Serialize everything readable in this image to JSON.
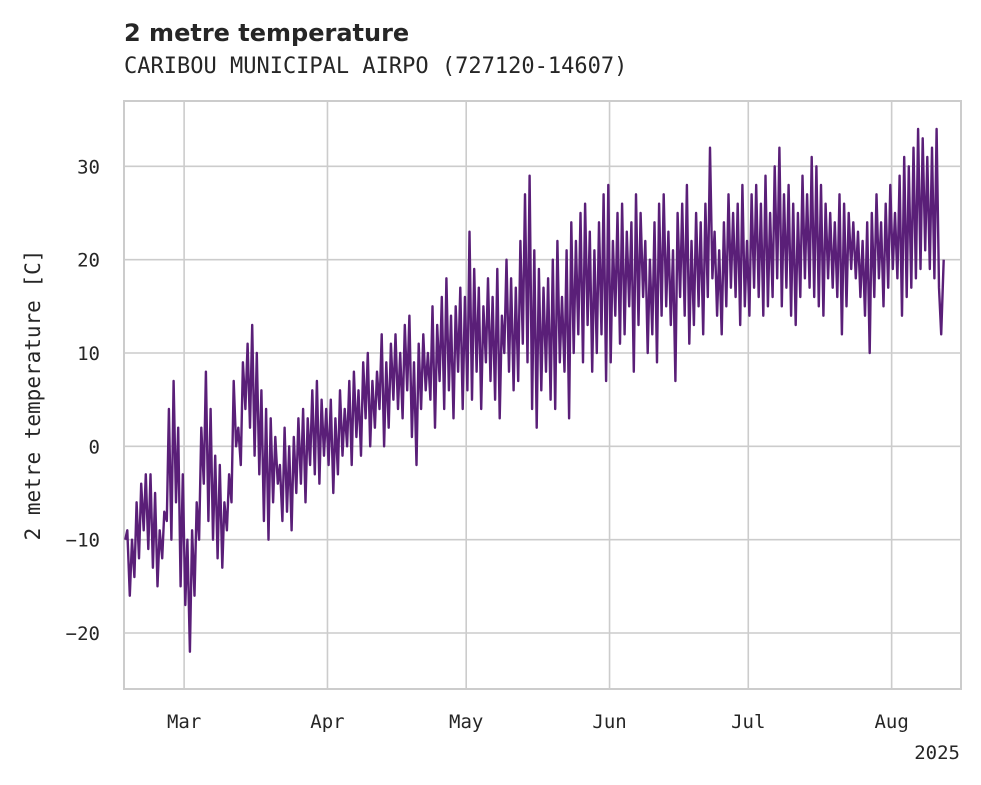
{
  "chart_data": {
    "type": "line",
    "title": "2 metre temperature",
    "subtitle": "CARIBOU MUNICIPAL AIRPO (727120-14607)",
    "ylabel": "2 metre temperature [C]",
    "xlabel": "",
    "x_range": [
      "2025-02-16",
      "2025-08-16"
    ],
    "ylim": [
      -26,
      37
    ],
    "y_ticks": [
      -20,
      -10,
      0,
      10,
      20,
      30
    ],
    "x_ticks": [
      {
        "date": "2025-03-01",
        "label": "Mar"
      },
      {
        "date": "2025-04-01",
        "label": "Apr"
      },
      {
        "date": "2025-05-01",
        "label": "May"
      },
      {
        "date": "2025-06-01",
        "label": "Jun"
      },
      {
        "date": "2025-07-01",
        "label": "Jul"
      },
      {
        "date": "2025-08-01",
        "label": "Aug"
      }
    ],
    "x_offset_label": "2025",
    "grid": true,
    "legend": "none",
    "color": "#5a1f78",
    "series": [
      {
        "x": [
          "2025-02-16",
          "2025-02-17",
          "2025-02-18",
          "2025-02-19",
          "2025-02-20",
          "2025-02-21",
          "2025-02-22",
          "2025-02-23",
          "2025-02-24",
          "2025-02-25",
          "2025-02-26",
          "2025-02-27",
          "2025-02-28",
          "2025-03-01",
          "2025-03-02",
          "2025-03-03",
          "2025-03-04",
          "2025-03-05",
          "2025-03-06",
          "2025-03-07",
          "2025-03-08",
          "2025-03-09",
          "2025-03-10",
          "2025-03-11",
          "2025-03-12",
          "2025-03-13",
          "2025-03-14",
          "2025-03-15",
          "2025-03-16",
          "2025-03-17",
          "2025-03-18",
          "2025-03-19",
          "2025-03-20",
          "2025-03-21",
          "2025-03-22",
          "2025-03-23",
          "2025-03-24",
          "2025-03-25",
          "2025-03-26",
          "2025-03-27",
          "2025-03-28",
          "2025-03-29",
          "2025-03-30",
          "2025-03-31",
          "2025-04-01",
          "2025-04-02",
          "2025-04-03",
          "2025-04-04",
          "2025-04-05",
          "2025-04-06",
          "2025-04-07",
          "2025-04-08",
          "2025-04-09",
          "2025-04-10",
          "2025-04-11",
          "2025-04-12",
          "2025-04-13",
          "2025-04-14",
          "2025-04-15",
          "2025-04-16",
          "2025-04-17",
          "2025-04-18",
          "2025-04-19",
          "2025-04-20",
          "2025-04-21",
          "2025-04-22",
          "2025-04-23",
          "2025-04-24",
          "2025-04-25",
          "2025-04-26",
          "2025-04-27",
          "2025-04-28",
          "2025-04-29",
          "2025-04-30",
          "2025-05-01",
          "2025-05-02",
          "2025-05-03",
          "2025-05-04",
          "2025-05-05",
          "2025-05-06",
          "2025-05-07",
          "2025-05-08",
          "2025-05-09",
          "2025-05-10",
          "2025-05-11",
          "2025-05-12",
          "2025-05-13",
          "2025-05-14",
          "2025-05-15",
          "2025-05-16",
          "2025-05-17",
          "2025-05-18",
          "2025-05-19",
          "2025-05-20",
          "2025-05-21",
          "2025-05-22",
          "2025-05-23",
          "2025-05-24",
          "2025-05-25",
          "2025-05-26",
          "2025-05-27",
          "2025-05-28",
          "2025-05-29",
          "2025-05-30",
          "2025-05-31",
          "2025-06-01",
          "2025-06-02",
          "2025-06-03",
          "2025-06-04",
          "2025-06-05",
          "2025-06-06",
          "2025-06-07",
          "2025-06-08",
          "2025-06-09",
          "2025-06-10",
          "2025-06-11",
          "2025-06-12",
          "2025-06-13",
          "2025-06-14",
          "2025-06-15",
          "2025-06-16",
          "2025-06-17",
          "2025-06-18",
          "2025-06-19",
          "2025-06-20",
          "2025-06-21",
          "2025-06-22",
          "2025-06-23",
          "2025-06-24",
          "2025-06-25",
          "2025-06-26",
          "2025-06-27",
          "2025-06-28",
          "2025-06-29",
          "2025-06-30",
          "2025-07-01",
          "2025-07-02",
          "2025-07-03",
          "2025-07-04",
          "2025-07-05",
          "2025-07-06",
          "2025-07-07",
          "2025-07-08",
          "2025-07-09",
          "2025-07-10",
          "2025-07-11",
          "2025-07-12",
          "2025-07-13",
          "2025-07-14",
          "2025-07-15",
          "2025-07-16",
          "2025-07-17",
          "2025-07-18",
          "2025-07-19",
          "2025-07-20",
          "2025-07-21",
          "2025-07-22",
          "2025-07-23",
          "2025-07-24",
          "2025-07-25",
          "2025-07-26",
          "2025-07-27",
          "2025-07-28",
          "2025-07-29",
          "2025-07-30",
          "2025-07-31",
          "2025-08-01",
          "2025-08-02",
          "2025-08-03",
          "2025-08-04",
          "2025-08-05",
          "2025-08-06",
          "2025-08-07",
          "2025-08-08",
          "2025-08-09",
          "2025-08-10",
          "2025-08-11",
          "2025-08-12",
          "2025-08-13",
          "2025-08-14",
          "2025-08-15",
          "2025-08-16"
        ],
        "min": [
          -10,
          -16,
          -14,
          -12,
          -9,
          -11,
          -13,
          -15,
          -12,
          -8,
          -10,
          -6,
          -15,
          -17,
          -22,
          -16,
          -10,
          -4,
          -8,
          -10,
          -12,
          -13,
          -9,
          -6,
          0,
          -2,
          4,
          2,
          -1,
          -3,
          -8,
          -10,
          -6,
          -4,
          -8,
          -7,
          -9,
          -5,
          -4,
          -6,
          -2,
          -3,
          -4,
          -1,
          -2,
          -5,
          -3,
          -1,
          0,
          -2,
          1,
          -1,
          3,
          0,
          2,
          4,
          0,
          2,
          5,
          4,
          3,
          6,
          1,
          -2,
          4,
          6,
          5,
          2,
          7,
          4,
          6,
          3,
          8,
          4,
          6,
          5,
          8,
          4,
          9,
          7,
          5,
          3,
          10,
          8,
          6,
          7,
          11,
          9,
          4,
          2,
          6,
          8,
          5,
          4,
          9,
          8,
          3,
          10,
          12,
          9,
          13,
          8,
          10,
          12,
          7,
          9,
          14,
          11,
          12,
          15,
          8,
          13,
          16,
          10,
          12,
          9,
          14,
          15,
          13,
          7,
          16,
          14,
          11,
          13,
          15,
          12,
          16,
          18,
          14,
          12,
          15,
          17,
          16,
          13,
          15,
          14,
          17,
          16,
          14,
          15,
          16,
          18,
          15,
          17,
          14,
          13,
          16,
          18,
          17,
          16,
          15,
          14,
          18,
          17,
          16,
          12,
          15,
          19,
          18,
          16,
          14,
          10,
          16,
          18,
          15,
          17,
          19,
          18,
          14,
          16,
          17,
          18,
          19,
          21,
          19,
          18,
          17,
          20,
          19,
          18,
          20,
          19,
          13
        ],
        "max": [
          -9,
          -10,
          -6,
          -4,
          -3,
          -3,
          -5,
          -9,
          -7,
          4,
          7,
          2,
          -3,
          -10,
          -9,
          -6,
          2,
          8,
          4,
          -1,
          -2,
          -6,
          -3,
          7,
          2,
          9,
          11,
          13,
          10,
          6,
          4,
          3,
          1,
          -2,
          2,
          0,
          1,
          3,
          4,
          3,
          6,
          7,
          5,
          4,
          5,
          3,
          6,
          4,
          7,
          8,
          6,
          9,
          10,
          7,
          8,
          12,
          9,
          11,
          12,
          10,
          13,
          14,
          9,
          11,
          12,
          10,
          15,
          13,
          16,
          18,
          14,
          15,
          17,
          16,
          23,
          19,
          17,
          15,
          18,
          16,
          19,
          14,
          20,
          18,
          17,
          22,
          27,
          29,
          21,
          19,
          17,
          18,
          20,
          22,
          16,
          21,
          24,
          22,
          25,
          26,
          23,
          21,
          24,
          27,
          28,
          22,
          25,
          26,
          23,
          24,
          27,
          25,
          22,
          20,
          24,
          26,
          27,
          23,
          21,
          25,
          26,
          28,
          22,
          25,
          24,
          26,
          32,
          23,
          21,
          24,
          27,
          25,
          26,
          28,
          22,
          27,
          28,
          26,
          29,
          25,
          30,
          32,
          27,
          28,
          26,
          25,
          29,
          27,
          31,
          30,
          28,
          26,
          25,
          24,
          27,
          26,
          25,
          24,
          23,
          22,
          24,
          25,
          27,
          24,
          26,
          28,
          25,
          29,
          31,
          30,
          32,
          34,
          33,
          31,
          32,
          34,
          12
        ]
      }
    ]
  }
}
